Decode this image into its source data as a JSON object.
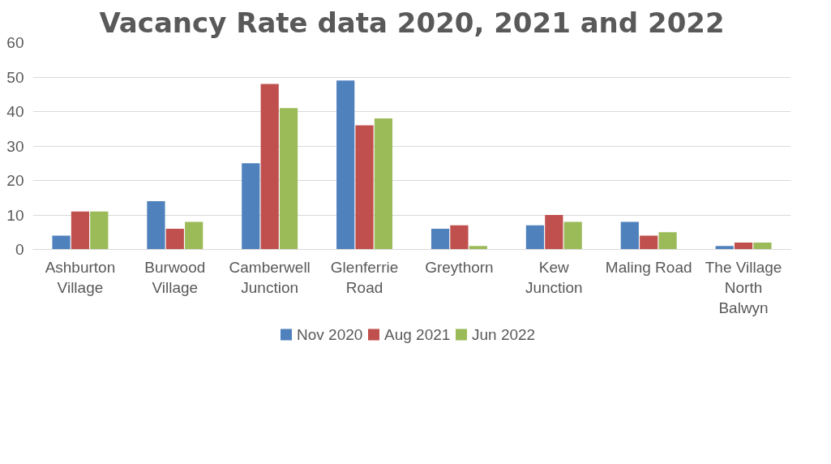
{
  "chart_data": {
    "type": "bar",
    "title": "Vacancy Rate data 2020, 2021 and 2022",
    "categories": [
      "Ashburton Village",
      "Burwood Village",
      "Camberwell Junction",
      "Glenferrie Road",
      "Greythorn",
      "Kew Junction",
      "Maling Road",
      "The Village North Balwyn"
    ],
    "series": [
      {
        "name": "Nov 2020",
        "color": "#4f81bd",
        "values": [
          4,
          14,
          25,
          49,
          6,
          7,
          8,
          1
        ]
      },
      {
        "name": "Aug 2021",
        "color": "#c0504d",
        "values": [
          11,
          6,
          48,
          36,
          7,
          10,
          4,
          2
        ]
      },
      {
        "name": "Jun 2022",
        "color": "#9bbb59",
        "values": [
          11,
          8,
          41,
          38,
          1,
          8,
          5,
          2
        ]
      }
    ],
    "ylim": [
      0,
      60
    ],
    "yticks": [
      0,
      10,
      20,
      30,
      40,
      50,
      60
    ],
    "grid": "y",
    "legend": "bottom"
  }
}
